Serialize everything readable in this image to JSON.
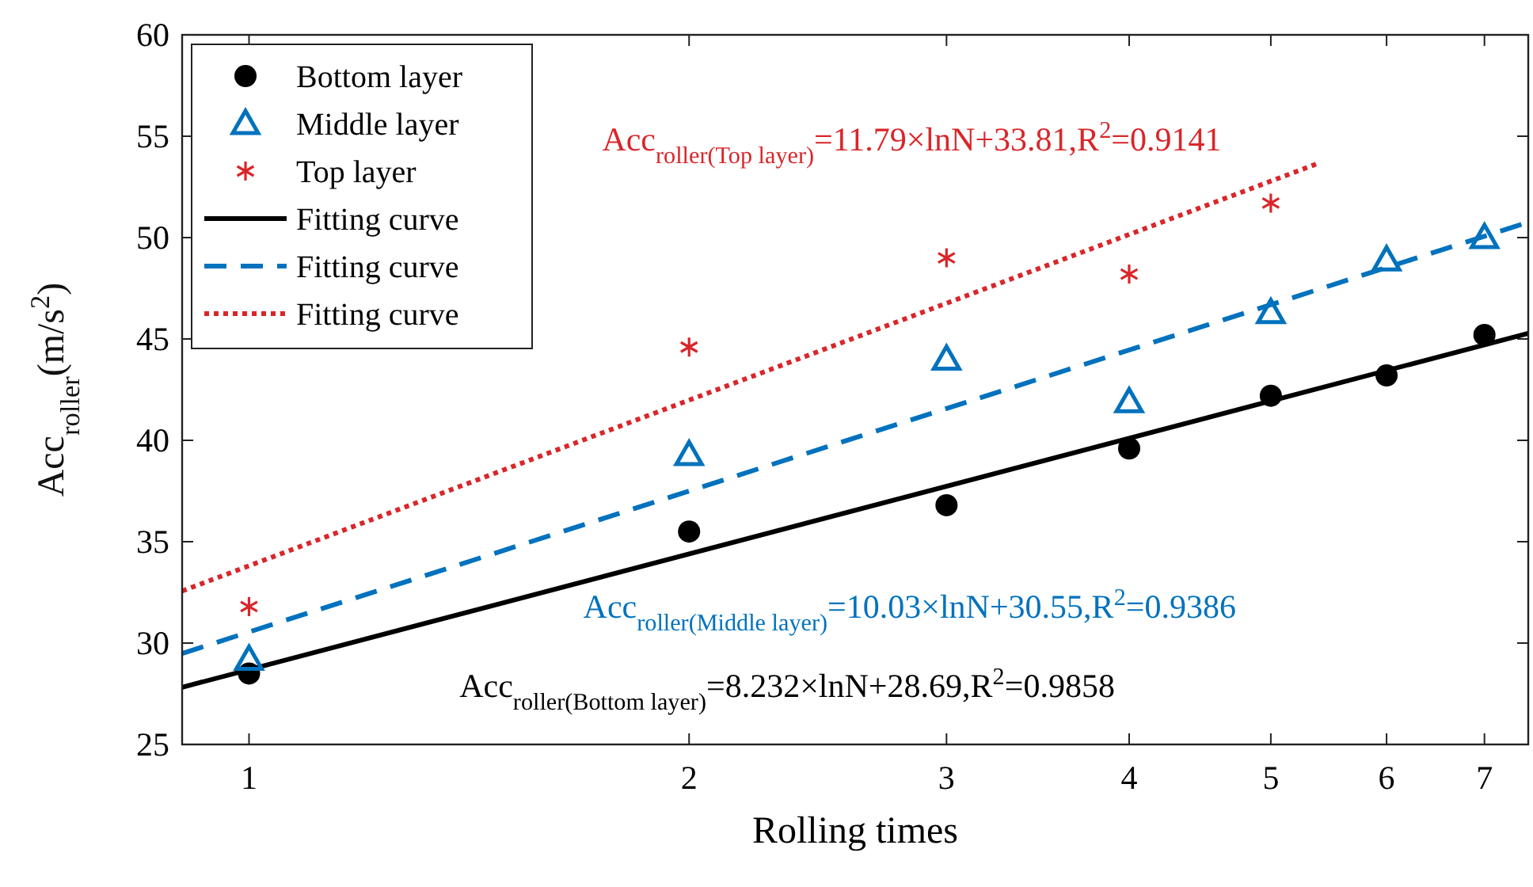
{
  "chart_data": {
    "type": "scatter",
    "xlabel": "Rolling times",
    "ylabel": "Acc$_{roller}$(m/s$^{2}$)",
    "log": "x",
    "xlim": [
      0.9,
      7.5
    ],
    "xticks": [
      1,
      2,
      3,
      4,
      5,
      6,
      7
    ],
    "ylim": [
      25,
      60
    ],
    "yticks": [
      25,
      30,
      35,
      40,
      45,
      50,
      55,
      60
    ],
    "legend": "top left",
    "series": [
      {
        "name": "Bottom layer",
        "marker": "circle",
        "color": "#000000",
        "x": [
          1,
          2,
          3,
          4,
          5,
          6,
          7
        ],
        "values": [
          28.5,
          35.5,
          36.8,
          39.6,
          42.2,
          43.2,
          45.2
        ]
      },
      {
        "name": "Middle layer",
        "marker": "triangle",
        "color": "#0072bd",
        "x": [
          1,
          2,
          3,
          4,
          5,
          6,
          7
        ],
        "values": [
          29.2,
          39.3,
          44.0,
          41.9,
          46.3,
          48.9,
          50.0
        ]
      },
      {
        "name": "Top layer",
        "marker": "cross",
        "color": "#d9262a",
        "x": [
          1,
          2,
          3,
          4,
          5
        ],
        "values": [
          31.8,
          44.6,
          49.0,
          48.2,
          51.7
        ]
      },
      {
        "name": "Fitting curve",
        "type": "line",
        "line_style": "solid",
        "color": "#000000",
        "x": [
          0.9,
          7.5
        ],
        "values": [
          27.82,
          45.28
        ]
      },
      {
        "name": "Fitting curve",
        "type": "line",
        "line_style": "dashed",
        "color": "#0072bd",
        "x": [
          0.9,
          7.5
        ],
        "values": [
          29.49,
          50.76
        ]
      },
      {
        "name": "Fitting curve",
        "type": "line",
        "line_style": "dotted",
        "color": "#d9262a",
        "x": [
          0.9,
          5.4
        ],
        "values": [
          32.57,
          53.69
        ]
      }
    ],
    "annotations": [
      "Acc$_{roller(Bottom layer)}$=8.232×lnN+28.69,R$^{2}$=0.9858",
      "Acc$_{roller(Middle layer)}$=10.03×lnN+30.55,R$^{2}$=0.9386",
      "Acc$_{roller(Top layer)}$=11.79×lnN+33.81,R$^{2}$=0.9141"
    ]
  }
}
